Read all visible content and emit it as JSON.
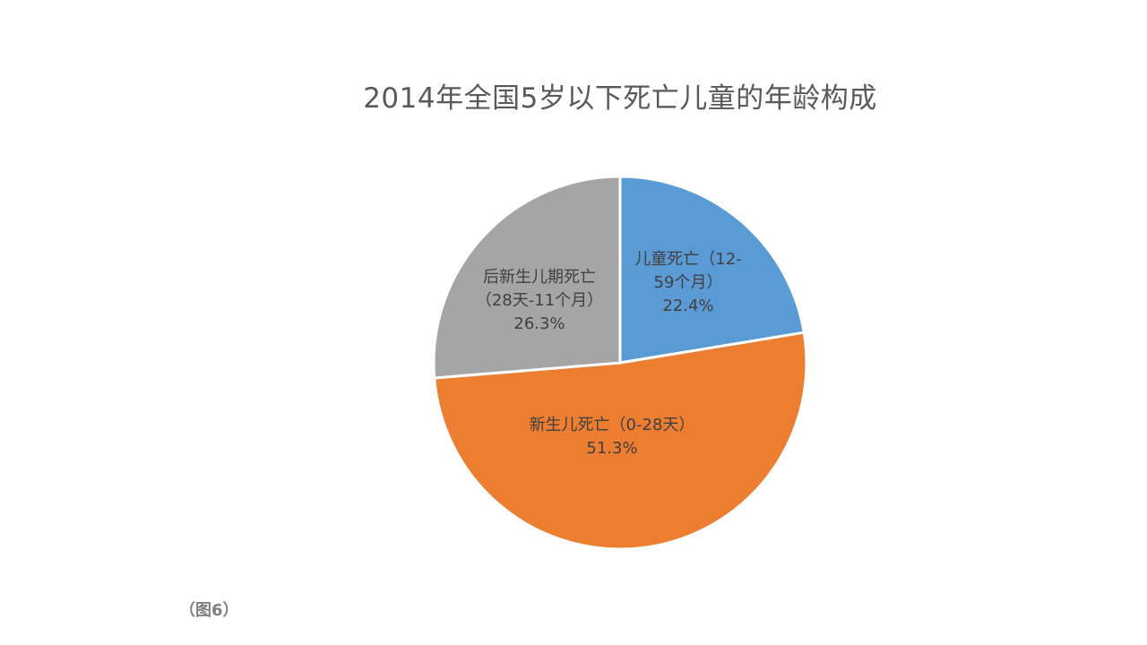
{
  "chart_data": {
    "type": "pie",
    "title": "2014年全国5岁以下死亡儿童的年龄构成",
    "slices": [
      {
        "label_lines": [
          "儿童死亡（12-",
          "59个月）"
        ],
        "value": 22.4,
        "percent_label": "22.4%",
        "color": "#5b9bd5"
      },
      {
        "label_lines": [
          "新生儿死亡（0-28天）"
        ],
        "value": 51.3,
        "percent_label": "51.3%",
        "color": "#ed7d31"
      },
      {
        "label_lines": [
          "后新生儿期死亡",
          "（28天-11个月）"
        ],
        "value": 26.3,
        "percent_label": "26.3%",
        "color": "#a5a5a5"
      }
    ],
    "start_angle_deg": 0,
    "direction": "clockwise",
    "legend": "none",
    "data_labels": "inside"
  },
  "caption": "（图6）"
}
